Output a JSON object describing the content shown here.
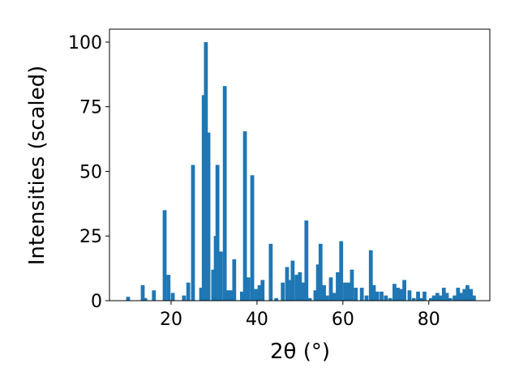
{
  "chart_data": {
    "type": "bar",
    "xlabel": "2θ (°)",
    "ylabel": "Intensities (scaled)",
    "color": "#1f77b4",
    "x": [
      10,
      13.4,
      14,
      16,
      18.5,
      19.4,
      20.4,
      23,
      24,
      25.1,
      27,
      27.6,
      28.1,
      28.7,
      29.8,
      30.4,
      30.8,
      31.6,
      32.5,
      33.3,
      34,
      34.7,
      36.5,
      37.2,
      38,
      38.9,
      39.8,
      40.6,
      41.3,
      43.2,
      44.5,
      46,
      47,
      47.6,
      48.3,
      49.2,
      50,
      50.8,
      51.5,
      52.3,
      53.6,
      54.2,
      54.8,
      55.6,
      56.3,
      57.2,
      58,
      58.8,
      59.6,
      60.5,
      61.3,
      62.1,
      63,
      64.4,
      65.5,
      66.5,
      67.2,
      68,
      69,
      70,
      71,
      72,
      72.8,
      73.5,
      74.3,
      75.5,
      76.5,
      77.5,
      78.3,
      79,
      80.5,
      81.2,
      82,
      82.8,
      83.5,
      84.2,
      85,
      86,
      86.8,
      87.5,
      88.3,
      89,
      89.8,
      90.5
    ],
    "values": [
      1.5,
      6,
      1,
      4,
      35,
      10,
      3,
      2,
      7,
      52.5,
      5,
      79.5,
      100,
      65,
      12,
      25,
      52.5,
      19,
      83,
      4,
      4,
      16,
      3.5,
      65.5,
      9,
      48.5,
      4.5,
      6,
      8,
      22,
      1,
      7,
      13,
      8,
      15.5,
      10,
      11,
      7,
      31,
      1,
      4,
      14,
      22,
      6,
      2,
      9,
      3,
      11,
      23,
      7,
      7,
      12,
      5,
      5,
      2,
      19.5,
      6,
      3.5,
      3.5,
      2,
      1,
      6.5,
      5,
      4.5,
      8,
      4,
      1,
      3.5,
      1,
      3.5,
      1,
      2,
      3,
      2,
      5,
      3,
      1,
      2,
      5,
      3,
      4.5,
      6,
      4.5,
      2
    ],
    "xlim": [
      5.66,
      94.2
    ],
    "ylim": [
      0,
      105
    ],
    "xticks": [
      20,
      40,
      60,
      80
    ],
    "yticks": [
      0,
      25,
      50,
      75,
      100
    ]
  }
}
